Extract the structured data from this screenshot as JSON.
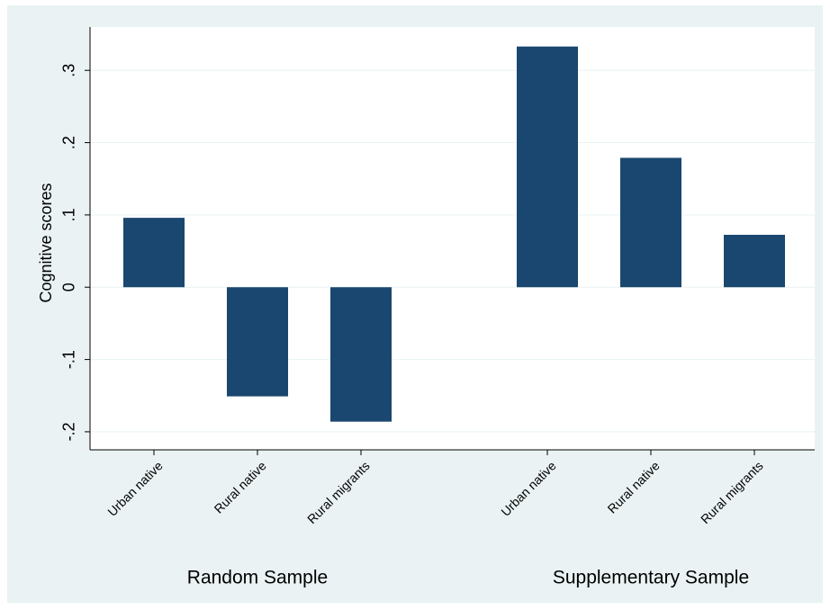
{
  "chart_data": {
    "type": "grouped-bar",
    "y_label": "Cognitive scores",
    "groups": [
      {
        "name": "Random Sample",
        "categories": [
          "Urban native",
          "Rural native",
          "Rural migrants"
        ],
        "values": [
          0.096,
          -0.151,
          -0.186
        ]
      },
      {
        "name": "Supplementary Sample",
        "categories": [
          "Urban native",
          "Rural native",
          "Rural migrants"
        ],
        "values": [
          0.333,
          0.179,
          0.0725
        ]
      }
    ],
    "color": "#1a476f",
    "ylim": [
      -0.225,
      0.36
    ],
    "yticks": [
      {
        "value": 0.3,
        "label": ".3"
      },
      {
        "value": 0.2,
        "label": ".2"
      },
      {
        "value": 0.1,
        "label": ".1"
      },
      0,
      {
        "value": -0.1,
        "label": "-.1"
      },
      {
        "value": -0.2,
        "label": "-.2"
      }
    ],
    "grid": true
  }
}
